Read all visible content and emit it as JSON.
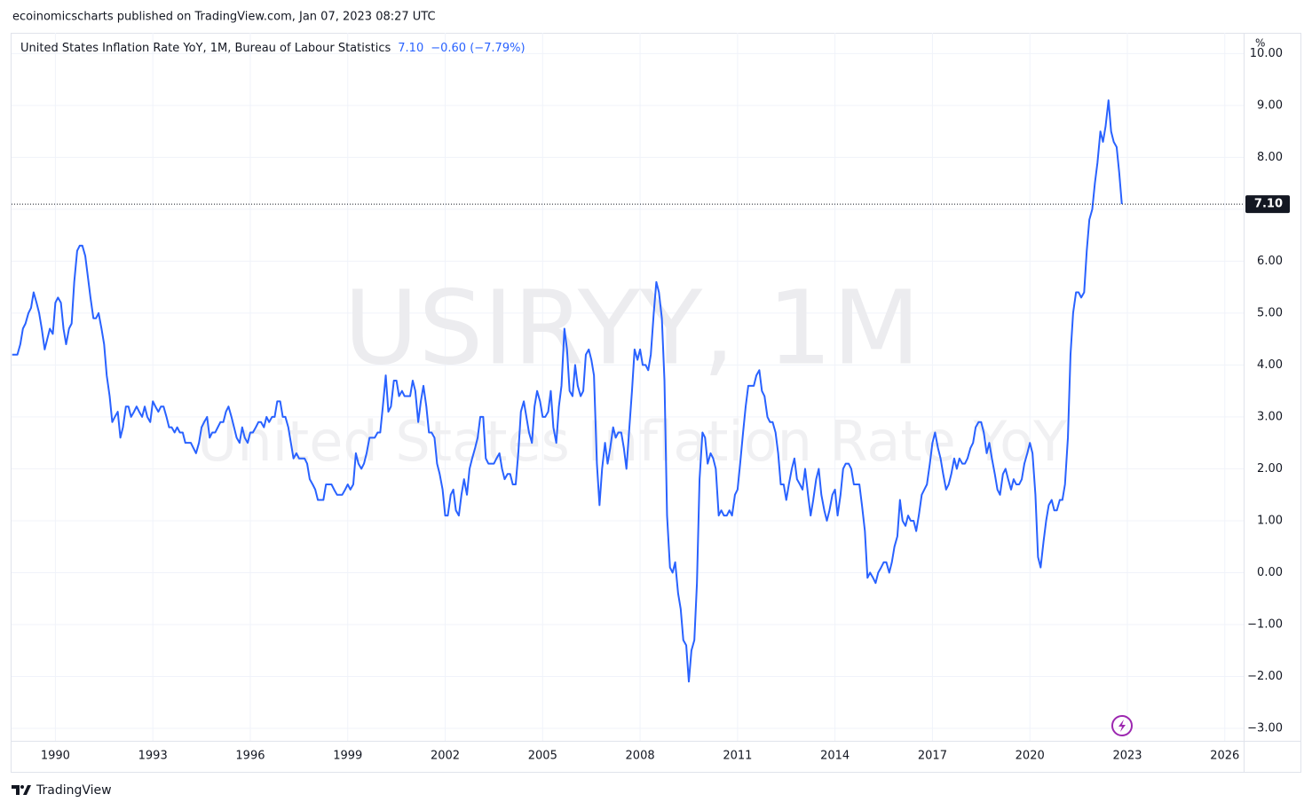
{
  "header": "ecoinomicscharts published on TradingView.com, Jan 07, 2023 08:27 UTC",
  "footer": "TradingView",
  "chart_data": {
    "type": "line",
    "watermark": [
      "USIRYY, 1M",
      "United States Inflation Rate YoY"
    ],
    "y_label": "%",
    "last_label": "7.10",
    "change_label": "−0.60 (−7.79%)",
    "grid": true,
    "xlim": [
      1988.65,
      2026.58
    ],
    "xticks": [
      1990,
      1993,
      1996,
      1999,
      2002,
      2005,
      2008,
      2011,
      2014,
      2017,
      2020,
      2023,
      2026
    ],
    "ylim": [
      -3.24,
      10.4
    ],
    "yticks": [
      {
        "value": -3,
        "label": "−3.00"
      },
      {
        "value": -2,
        "label": "−2.00"
      },
      {
        "value": -1,
        "label": "−1.00"
      },
      {
        "value": 0,
        "label": "0.00"
      },
      {
        "value": 1,
        "label": "1.00"
      },
      {
        "value": 2,
        "label": "2.00"
      },
      {
        "value": 3,
        "label": "3.00"
      },
      {
        "value": 4,
        "label": "4.00"
      },
      {
        "value": 5,
        "label": "5.00"
      },
      {
        "value": 6,
        "label": "6.00"
      },
      {
        "value": 7,
        "label": "7.00"
      },
      {
        "value": 8,
        "label": "8.00"
      },
      {
        "value": 9,
        "label": "9.00"
      },
      {
        "value": 10,
        "label": "10.00"
      }
    ],
    "x": [
      1988.67,
      1988.75,
      1988.83,
      1988.92,
      1989,
      1989.08,
      1989.17,
      1989.25,
      1989.33,
      1989.42,
      1989.5,
      1989.58,
      1989.67,
      1989.75,
      1989.83,
      1989.92,
      1990,
      1990.08,
      1990.17,
      1990.25,
      1990.33,
      1990.42,
      1990.5,
      1990.58,
      1990.67,
      1990.75,
      1990.83,
      1990.92,
      1991,
      1991.08,
      1991.17,
      1991.25,
      1991.33,
      1991.42,
      1991.5,
      1991.58,
      1991.67,
      1991.75,
      1991.83,
      1991.92,
      1992,
      1992.08,
      1992.17,
      1992.25,
      1992.33,
      1992.42,
      1992.5,
      1992.58,
      1992.67,
      1992.75,
      1992.83,
      1992.92,
      1993,
      1993.08,
      1993.17,
      1993.25,
      1993.33,
      1993.42,
      1993.5,
      1993.58,
      1993.67,
      1993.75,
      1993.83,
      1993.92,
      1994,
      1994.08,
      1994.17,
      1994.25,
      1994.33,
      1994.42,
      1994.5,
      1994.58,
      1994.67,
      1994.75,
      1994.83,
      1994.92,
      1995,
      1995.08,
      1995.17,
      1995.25,
      1995.33,
      1995.42,
      1995.5,
      1995.58,
      1995.67,
      1995.75,
      1995.83,
      1995.92,
      1996,
      1996.08,
      1996.17,
      1996.25,
      1996.33,
      1996.42,
      1996.5,
      1996.58,
      1996.67,
      1996.75,
      1996.83,
      1996.92,
      1997,
      1997.08,
      1997.17,
      1997.25,
      1997.33,
      1997.42,
      1997.5,
      1997.58,
      1997.67,
      1997.75,
      1997.83,
      1997.92,
      1998,
      1998.08,
      1998.17,
      1998.25,
      1998.33,
      1998.42,
      1998.5,
      1998.58,
      1998.67,
      1998.75,
      1998.83,
      1998.92,
      1999,
      1999.08,
      1999.17,
      1999.25,
      1999.33,
      1999.42,
      1999.5,
      1999.58,
      1999.67,
      1999.75,
      1999.83,
      1999.92,
      2000,
      2000.08,
      2000.17,
      2000.25,
      2000.33,
      2000.42,
      2000.5,
      2000.58,
      2000.67,
      2000.75,
      2000.83,
      2000.92,
      2001,
      2001.08,
      2001.17,
      2001.25,
      2001.33,
      2001.42,
      2001.5,
      2001.58,
      2001.67,
      2001.75,
      2001.83,
      2001.92,
      2002,
      2002.08,
      2002.17,
      2002.25,
      2002.33,
      2002.42,
      2002.5,
      2002.58,
      2002.67,
      2002.75,
      2002.83,
      2002.92,
      2003,
      2003.08,
      2003.17,
      2003.25,
      2003.33,
      2003.42,
      2003.5,
      2003.58,
      2003.67,
      2003.75,
      2003.83,
      2003.92,
      2004,
      2004.08,
      2004.17,
      2004.25,
      2004.33,
      2004.42,
      2004.5,
      2004.58,
      2004.67,
      2004.75,
      2004.83,
      2004.92,
      2005,
      2005.08,
      2005.17,
      2005.25,
      2005.33,
      2005.42,
      2005.5,
      2005.58,
      2005.67,
      2005.75,
      2005.83,
      2005.92,
      2006,
      2006.08,
      2006.17,
      2006.25,
      2006.33,
      2006.42,
      2006.5,
      2006.58,
      2006.67,
      2006.75,
      2006.83,
      2006.92,
      2007,
      2007.08,
      2007.17,
      2007.25,
      2007.33,
      2007.42,
      2007.5,
      2007.58,
      2007.67,
      2007.75,
      2007.83,
      2007.92,
      2008,
      2008.08,
      2008.17,
      2008.25,
      2008.33,
      2008.42,
      2008.5,
      2008.58,
      2008.67,
      2008.75,
      2008.83,
      2008.92,
      2009,
      2009.08,
      2009.17,
      2009.25,
      2009.33,
      2009.42,
      2009.5,
      2009.58,
      2009.67,
      2009.75,
      2009.83,
      2009.92,
      2010,
      2010.08,
      2010.17,
      2010.25,
      2010.33,
      2010.42,
      2010.5,
      2010.58,
      2010.67,
      2010.75,
      2010.83,
      2010.92,
      2011,
      2011.08,
      2011.17,
      2011.25,
      2011.33,
      2011.42,
      2011.5,
      2011.58,
      2011.67,
      2011.75,
      2011.83,
      2011.92,
      2012,
      2012.08,
      2012.17,
      2012.25,
      2012.33,
      2012.42,
      2012.5,
      2012.58,
      2012.67,
      2012.75,
      2012.83,
      2012.92,
      2013,
      2013.08,
      2013.17,
      2013.25,
      2013.33,
      2013.42,
      2013.5,
      2013.58,
      2013.67,
      2013.75,
      2013.83,
      2013.92,
      2014,
      2014.08,
      2014.17,
      2014.25,
      2014.33,
      2014.42,
      2014.5,
      2014.58,
      2014.67,
      2014.75,
      2014.83,
      2014.92,
      2015,
      2015.08,
      2015.17,
      2015.25,
      2015.33,
      2015.42,
      2015.5,
      2015.58,
      2015.67,
      2015.75,
      2015.83,
      2015.92,
      2016,
      2016.08,
      2016.17,
      2016.25,
      2016.33,
      2016.42,
      2016.5,
      2016.58,
      2016.67,
      2016.75,
      2016.83,
      2016.92,
      2017,
      2017.08,
      2017.17,
      2017.25,
      2017.33,
      2017.42,
      2017.5,
      2017.58,
      2017.67,
      2017.75,
      2017.83,
      2017.92,
      2018,
      2018.08,
      2018.17,
      2018.25,
      2018.33,
      2018.42,
      2018.5,
      2018.58,
      2018.67,
      2018.75,
      2018.83,
      2018.92,
      2019,
      2019.08,
      2019.17,
      2019.25,
      2019.33,
      2019.42,
      2019.5,
      2019.58,
      2019.67,
      2019.75,
      2019.83,
      2019.92,
      2020,
      2020.08,
      2020.17,
      2020.25,
      2020.33,
      2020.42,
      2020.5,
      2020.58,
      2020.67,
      2020.75,
      2020.83,
      2020.92,
      2021,
      2021.08,
      2021.17,
      2021.25,
      2021.33,
      2021.42,
      2021.5,
      2021.58,
      2021.67,
      2021.75,
      2021.83,
      2021.92,
      2022,
      2022.08,
      2022.17,
      2022.25,
      2022.33,
      2022.42,
      2022.5,
      2022.58,
      2022.67,
      2022.75,
      2022.83
    ],
    "series": [
      {
        "name": "United States Inflation Rate YoY, 1M, Bureau of Labour Statistics",
        "color": "#2962ff",
        "values": [
          4.2,
          4.2,
          4.2,
          4.4,
          4.7,
          4.8,
          5.0,
          5.1,
          5.4,
          5.2,
          5.0,
          4.7,
          4.3,
          4.5,
          4.7,
          4.6,
          5.2,
          5.3,
          5.2,
          4.7,
          4.4,
          4.7,
          4.8,
          5.6,
          6.2,
          6.3,
          6.3,
          6.1,
          5.7,
          5.3,
          4.9,
          4.9,
          5.0,
          4.7,
          4.4,
          3.8,
          3.4,
          2.9,
          3.0,
          3.1,
          2.6,
          2.8,
          3.2,
          3.2,
          3.0,
          3.1,
          3.2,
          3.1,
          3.0,
          3.2,
          3.0,
          2.9,
          3.3,
          3.2,
          3.1,
          3.2,
          3.2,
          3.0,
          2.8,
          2.8,
          2.7,
          2.8,
          2.7,
          2.7,
          2.5,
          2.5,
          2.5,
          2.4,
          2.3,
          2.5,
          2.8,
          2.9,
          3.0,
          2.6,
          2.7,
          2.7,
          2.8,
          2.9,
          2.9,
          3.1,
          3.2,
          3.0,
          2.8,
          2.6,
          2.5,
          2.8,
          2.6,
          2.5,
          2.7,
          2.7,
          2.8,
          2.9,
          2.9,
          2.8,
          3.0,
          2.9,
          3.0,
          3.0,
          3.3,
          3.3,
          3.0,
          3.0,
          2.8,
          2.5,
          2.2,
          2.3,
          2.2,
          2.2,
          2.2,
          2.1,
          1.8,
          1.7,
          1.6,
          1.4,
          1.4,
          1.4,
          1.7,
          1.7,
          1.7,
          1.6,
          1.5,
          1.5,
          1.5,
          1.6,
          1.7,
          1.6,
          1.7,
          2.3,
          2.1,
          2.0,
          2.1,
          2.3,
          2.6,
          2.6,
          2.6,
          2.7,
          2.7,
          3.2,
          3.8,
          3.1,
          3.2,
          3.7,
          3.7,
          3.4,
          3.5,
          3.4,
          3.4,
          3.4,
          3.7,
          3.5,
          2.9,
          3.3,
          3.6,
          3.2,
          2.7,
          2.7,
          2.6,
          2.1,
          1.9,
          1.6,
          1.1,
          1.1,
          1.5,
          1.6,
          1.2,
          1.1,
          1.5,
          1.8,
          1.5,
          2.0,
          2.2,
          2.4,
          2.6,
          3.0,
          3.0,
          2.2,
          2.1,
          2.1,
          2.1,
          2.2,
          2.3,
          2.0,
          1.8,
          1.9,
          1.9,
          1.7,
          1.7,
          2.3,
          3.1,
          3.3,
          3.0,
          2.7,
          2.5,
          3.2,
          3.5,
          3.3,
          3.0,
          3.0,
          3.1,
          3.5,
          2.8,
          2.5,
          3.2,
          3.6,
          4.7,
          4.3,
          3.5,
          3.4,
          4.0,
          3.6,
          3.4,
          3.5,
          4.2,
          4.3,
          4.1,
          3.8,
          2.1,
          1.3,
          2.0,
          2.5,
          2.1,
          2.4,
          2.8,
          2.6,
          2.7,
          2.7,
          2.4,
          2.0,
          2.8,
          3.5,
          4.3,
          4.1,
          4.3,
          4.0,
          4.0,
          3.9,
          4.2,
          5.0,
          5.6,
          5.4,
          4.9,
          3.7,
          1.1,
          0.1,
          0.0,
          0.2,
          -0.4,
          -0.7,
          -1.3,
          -1.4,
          -2.1,
          -1.5,
          -1.3,
          -0.2,
          1.8,
          2.7,
          2.6,
          2.1,
          2.3,
          2.2,
          2.0,
          1.1,
          1.2,
          1.1,
          1.1,
          1.2,
          1.1,
          1.5,
          1.6,
          2.1,
          2.7,
          3.2,
          3.6,
          3.6,
          3.6,
          3.8,
          3.9,
          3.5,
          3.4,
          3.0,
          2.9,
          2.9,
          2.7,
          2.3,
          1.7,
          1.7,
          1.4,
          1.7,
          2.0,
          2.2,
          1.8,
          1.7,
          1.6,
          2.0,
          1.5,
          1.1,
          1.4,
          1.8,
          2.0,
          1.5,
          1.2,
          1.0,
          1.2,
          1.5,
          1.6,
          1.1,
          1.5,
          2.0,
          2.1,
          2.1,
          2.0,
          1.7,
          1.7,
          1.7,
          1.3,
          0.8,
          -0.1,
          0.0,
          -0.1,
          -0.2,
          0.0,
          0.1,
          0.2,
          0.2,
          0.0,
          0.2,
          0.5,
          0.7,
          1.4,
          1.0,
          0.9,
          1.1,
          1.0,
          1.0,
          0.8,
          1.1,
          1.5,
          1.6,
          1.7,
          2.1,
          2.5,
          2.7,
          2.4,
          2.2,
          1.9,
          1.6,
          1.7,
          1.9,
          2.2,
          2.0,
          2.2,
          2.1,
          2.1,
          2.2,
          2.4,
          2.5,
          2.8,
          2.9,
          2.9,
          2.7,
          2.3,
          2.5,
          2.2,
          1.9,
          1.6,
          1.5,
          1.9,
          2.0,
          1.8,
          1.6,
          1.8,
          1.7,
          1.7,
          1.8,
          2.1,
          2.3,
          2.5,
          2.3,
          1.5,
          0.3,
          0.1,
          0.6,
          1.0,
          1.3,
          1.4,
          1.2,
          1.2,
          1.4,
          1.4,
          1.7,
          2.6,
          4.2,
          5.0,
          5.4,
          5.4,
          5.3,
          5.4,
          6.2,
          6.8,
          7.0,
          7.5,
          7.9,
          8.5,
          8.3,
          8.6,
          9.1,
          8.5,
          8.3,
          8.2,
          7.7,
          7.1
        ]
      }
    ]
  }
}
